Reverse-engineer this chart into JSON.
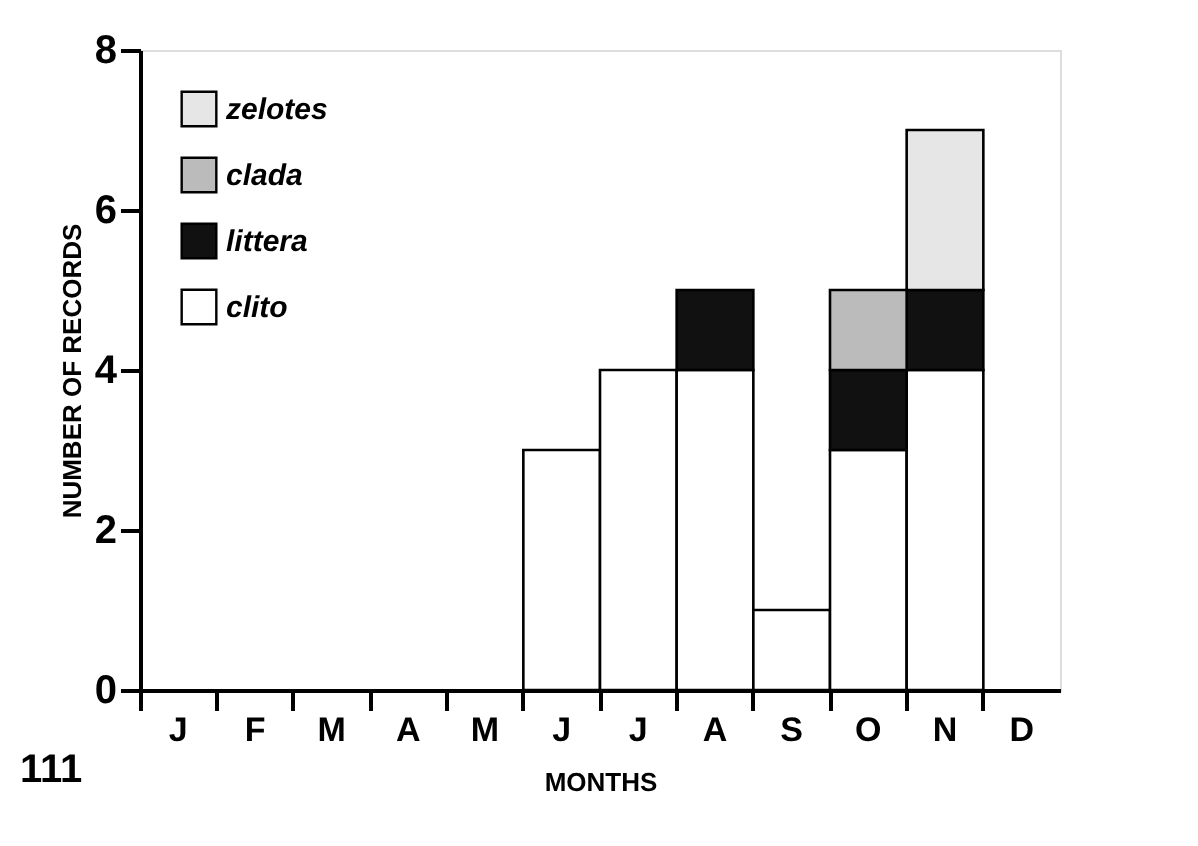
{
  "chart_data": {
    "type": "bar",
    "stacked": true,
    "categories": [
      "J",
      "F",
      "M",
      "A",
      "M",
      "J",
      "J",
      "A",
      "S",
      "O",
      "N",
      "D"
    ],
    "series": [
      {
        "name": "clito",
        "color": "#ffffff",
        "values": [
          null,
          null,
          null,
          null,
          null,
          3,
          4,
          4,
          1,
          3,
          4,
          null
        ]
      },
      {
        "name": "littera",
        "color": "#111111",
        "values": [
          null,
          null,
          null,
          null,
          null,
          null,
          null,
          1,
          null,
          1,
          1,
          null
        ]
      },
      {
        "name": "clada",
        "color": "#bbbbbb",
        "values": [
          null,
          null,
          null,
          null,
          null,
          null,
          null,
          null,
          null,
          1,
          null,
          null
        ]
      },
      {
        "name": "zelotes",
        "color": "#e6e6e6",
        "values": [
          null,
          null,
          null,
          null,
          null,
          null,
          null,
          null,
          null,
          null,
          2,
          null
        ]
      }
    ],
    "ylim": [
      0,
      8
    ],
    "yticks": [
      0,
      2,
      4,
      6,
      8
    ],
    "xlabel": "MONTHS",
    "ylabel": "NUMBER OF RECORDS",
    "legend": "top left",
    "grid": false,
    "annotations": [
      "111"
    ]
  }
}
